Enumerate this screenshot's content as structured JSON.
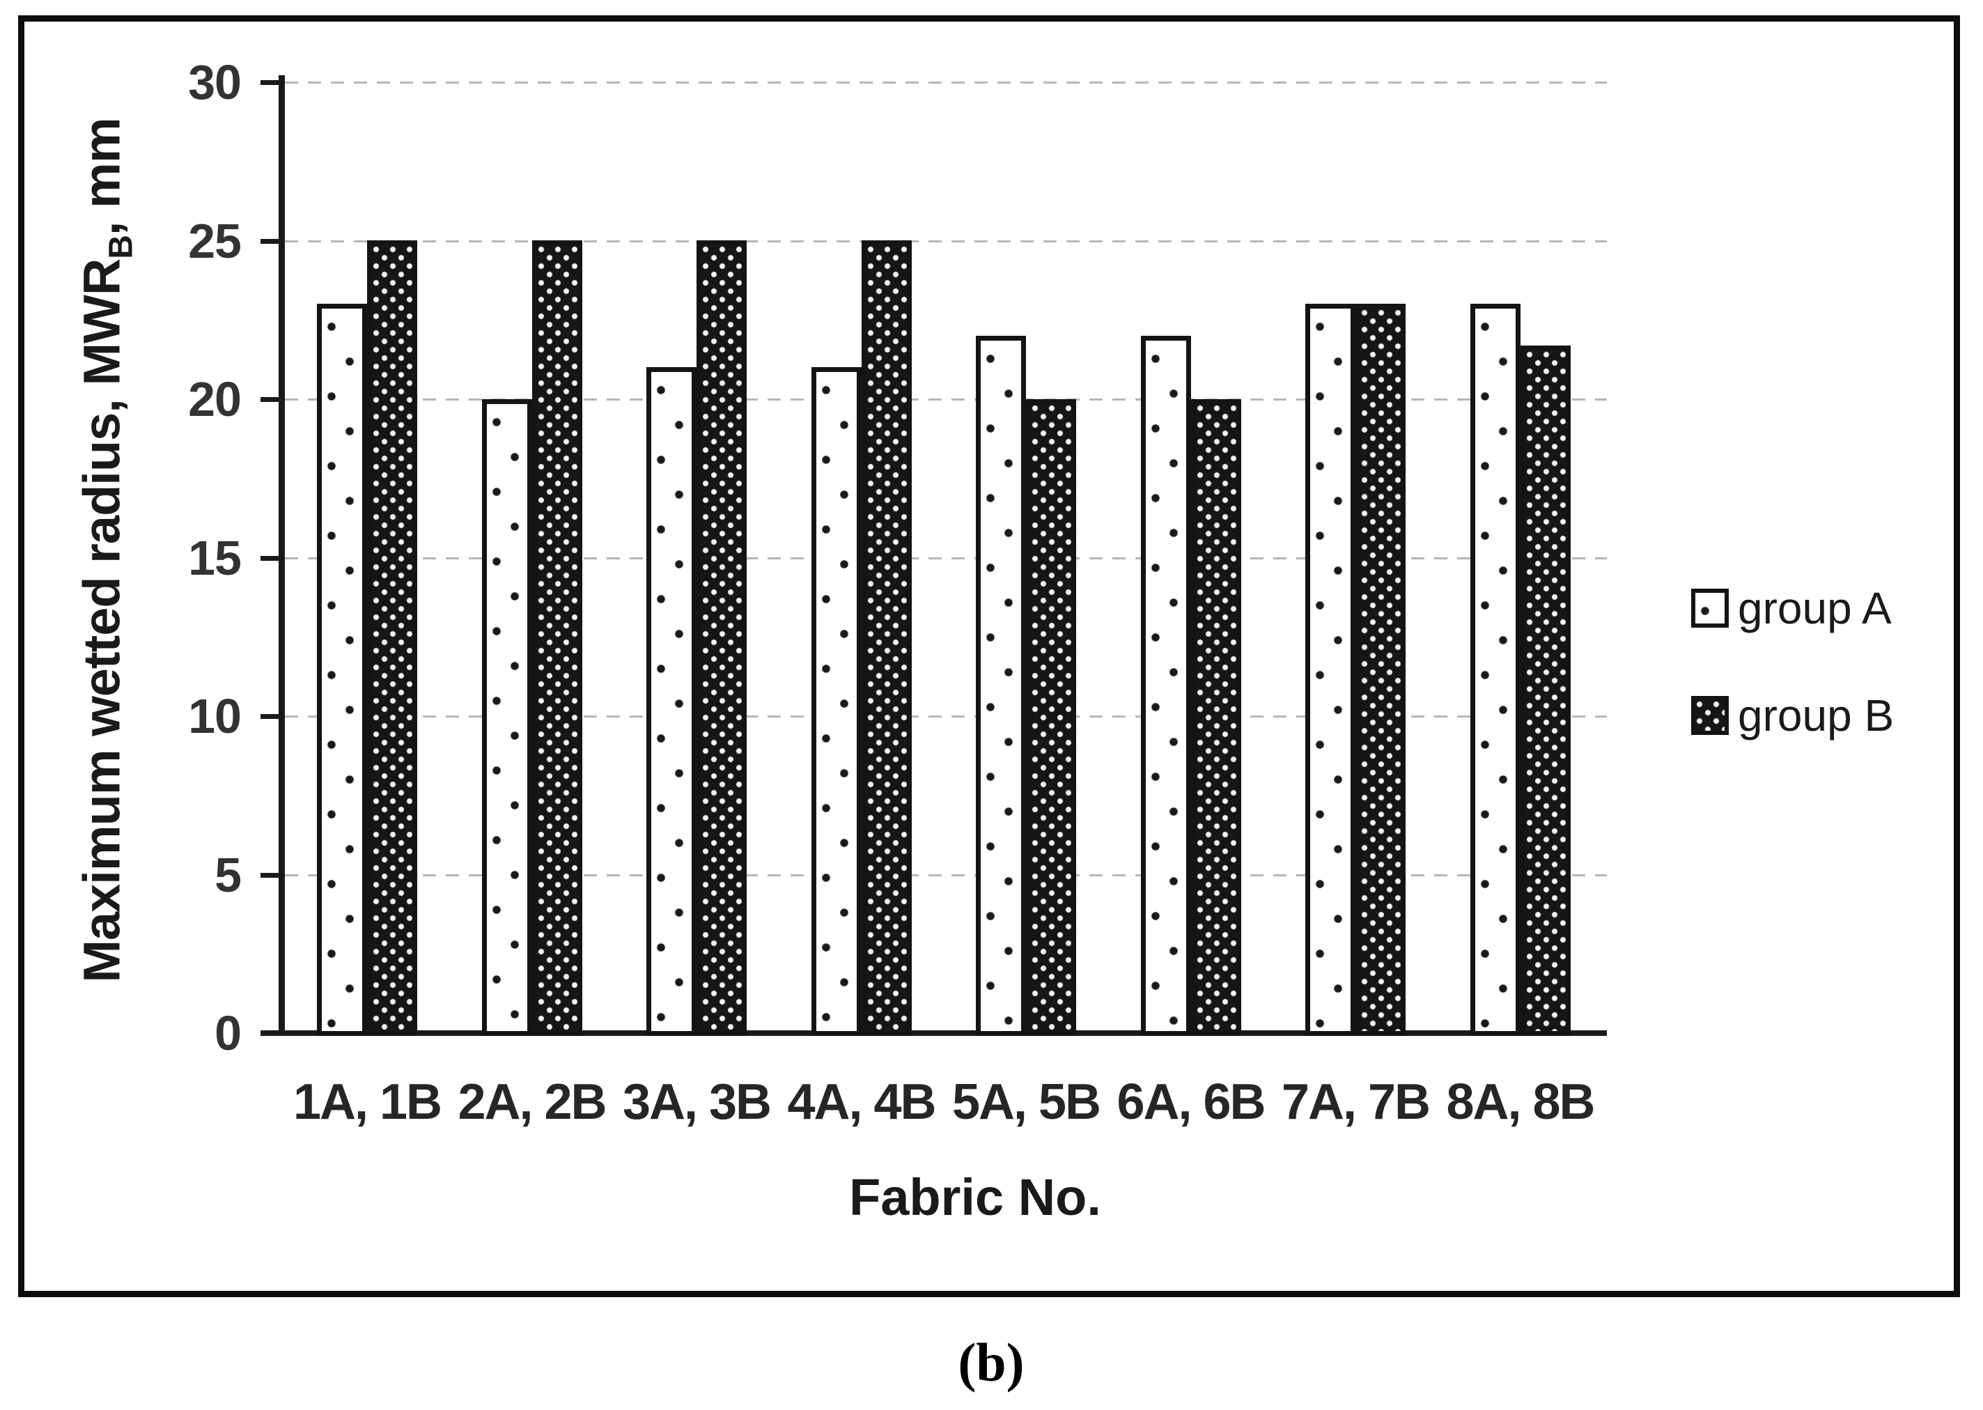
{
  "figure": {
    "caption": "(b)"
  },
  "chart_data": {
    "type": "bar",
    "title": "",
    "categories": [
      "1A, 1B",
      "2A, 2B",
      "3A, 3B",
      "4A, 4B",
      "5A, 5B",
      "6A, 6B",
      "7A, 7B",
      "8A, 8B"
    ],
    "series": [
      {
        "name": "group A",
        "pattern": "sparse black dots on white",
        "values": [
          23,
          20,
          21,
          21,
          22,
          22,
          23,
          23
        ]
      },
      {
        "name": "group B",
        "pattern": "white dot grid on black",
        "values": [
          25,
          25,
          25,
          25,
          20,
          20,
          23,
          21.7
        ]
      }
    ],
    "xlabel": "Fabric No.",
    "ylabel": "Maximum wetted radius, MWR_B, mm",
    "ylabel_parts": {
      "main": "Maximum wetted radius, MWR",
      "sub": "B",
      "suffix": ", mm"
    },
    "ylim": [
      0,
      30
    ],
    "yticks": [
      0,
      5,
      10,
      15,
      20,
      25,
      30
    ],
    "grid": "horizontal dashed",
    "legend_position": "right"
  },
  "colors": {
    "axis": "#1a1a1a",
    "text": "#262626",
    "grid": "#b6b6b6",
    "bar_outline": "#141414",
    "group_a_fill": "#ffffff",
    "group_b_fill": "#161616",
    "background": "#ffffff"
  }
}
